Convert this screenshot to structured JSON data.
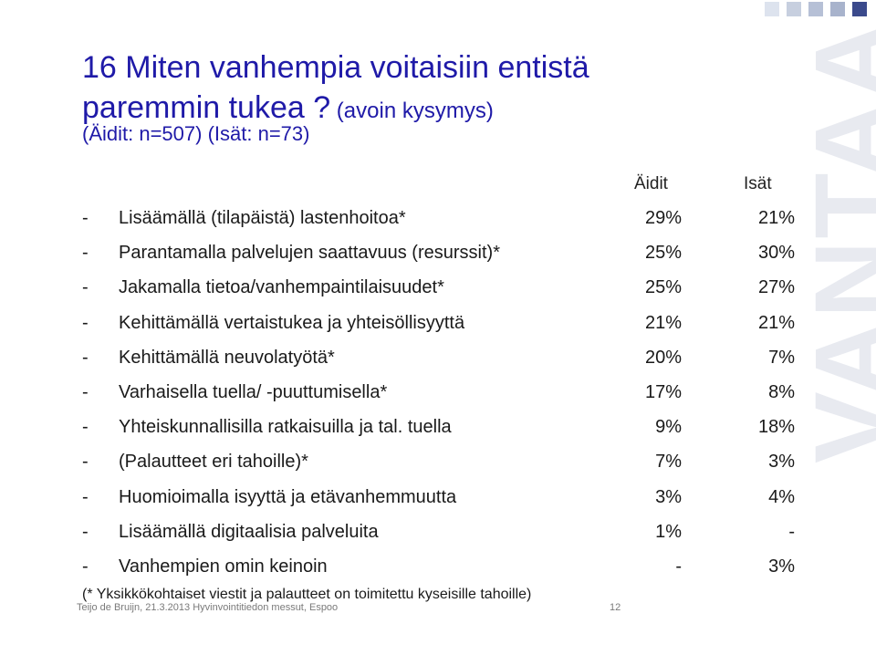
{
  "corner_colors": [
    "#dde3ee",
    "#c7cfdf",
    "#b6c0d6",
    "#a8b3cc",
    "#3b4a8c"
  ],
  "watermark": "VANTAA",
  "title": {
    "line1": "16 Miten vanhempia voitaisiin entistä",
    "line2_main": "paremmin tukea ?",
    "line2_aside": " (avoin kysymys)"
  },
  "subtitle": "(Äidit: n=507) (Isät: n=73)",
  "columns": {
    "mothers": "Äidit",
    "fathers": "Isät"
  },
  "rows": [
    {
      "dash": "-",
      "label": "Lisäämällä (tilapäistä) lastenhoitoa*",
      "mothers": "29%",
      "fathers": "21%"
    },
    {
      "dash": "-",
      "label": "Parantamalla palvelujen saattavuus (resurssit)*",
      "mothers": "25%",
      "fathers": "30%"
    },
    {
      "dash": "-",
      "label": "Jakamalla tietoa/vanhempaintilaisuudet*",
      "mothers": "25%",
      "fathers": "27%"
    },
    {
      "dash": "-",
      "label": "Kehittämällä vertaistukea ja yhteisöllisyyttä",
      "mothers": "21%",
      "fathers": "21%"
    },
    {
      "dash": "-",
      "label": "Kehittämällä neuvolatyötä*",
      "mothers": "20%",
      "fathers": "7%"
    },
    {
      "dash": "-",
      "label": "Varhaisella tuella/ -puuttumisella*",
      "mothers": "17%",
      "fathers": "8%"
    },
    {
      "dash": "-",
      "label": "Yhteiskunnallisilla ratkaisuilla ja tal. tuella",
      "mothers": "9%",
      "fathers": "18%"
    },
    {
      "dash": "-",
      "label": "(Palautteet eri tahoille)*",
      "mothers": "7%",
      "fathers": "3%"
    },
    {
      "dash": "-",
      "label": "Huomioimalla isyyttä ja etävanhemmuutta",
      "mothers": "3%",
      "fathers": "4%"
    },
    {
      "dash": "-",
      "label": "Lisäämällä digitaalisia palveluita",
      "mothers": "1%",
      "fathers": "-"
    },
    {
      "dash": "-",
      "label": "Vanhempien omin keinoin",
      "mothers": "-",
      "fathers": "3%"
    }
  ],
  "footnote": "(* Yksikkökohtaiset viestit ja palautteet on toimitettu kyseisille tahoille)",
  "footer": {
    "left": "Teijo de Bruijn, 21.3.2013 Hyvinvointitiedon messut, Espoo",
    "page": "12"
  }
}
